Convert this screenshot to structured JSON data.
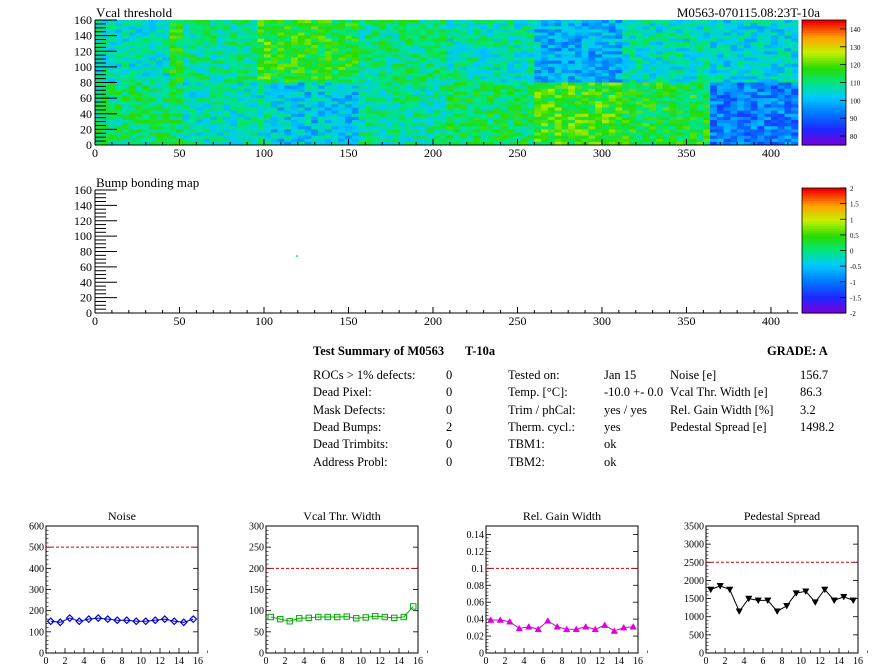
{
  "header": {
    "left_title": "Vcal threshold",
    "right_title": "M0563-070115.08:23T-10a"
  },
  "map1": {
    "title": "Vcal threshold",
    "x_ticks": [
      "0",
      "50",
      "100",
      "150",
      "200",
      "250",
      "300",
      "350",
      "400"
    ],
    "y_ticks": [
      "0",
      "20",
      "40",
      "60",
      "80",
      "100",
      "120",
      "140",
      "160"
    ],
    "colorbar_ticks": [
      "80",
      "90",
      "100",
      "110",
      "120",
      "130",
      "140"
    ],
    "chart_data": {
      "type": "heatmap",
      "xlim": [
        0,
        416
      ],
      "ylim": [
        0,
        160
      ],
      "zlim": [
        75,
        140
      ],
      "roc_grid": {
        "columns": 8,
        "rows": 2,
        "roc_width": 52,
        "roc_height": 80
      },
      "roc_mean_top": [
        104,
        107,
        113,
        108,
        105,
        97,
        104,
        102
      ],
      "roc_mean_bottom": [
        109,
        104,
        100,
        106,
        110,
        115,
        112,
        92
      ]
    }
  },
  "map2": {
    "title": "Bump bonding map",
    "x_ticks": [
      "0",
      "50",
      "100",
      "150",
      "200",
      "250",
      "300",
      "350",
      "400"
    ],
    "y_ticks": [
      "0",
      "20",
      "40",
      "60",
      "80",
      "100",
      "120",
      "140",
      "160"
    ],
    "colorbar_ticks": [
      "-2",
      "-1.5",
      "-1",
      "-0.5",
      "0",
      "0.5",
      "1",
      "1.5",
      "2"
    ],
    "chart_data": {
      "type": "heatmap",
      "xlim": [
        0,
        416
      ],
      "ylim": [
        0,
        160
      ],
      "zlim": [
        -2,
        2
      ],
      "points": [
        {
          "x": 119,
          "y": 75,
          "z": 0
        }
      ]
    }
  },
  "summary": {
    "title": "Test Summary of M0563",
    "temp_label": "T-10a",
    "grade": "GRADE:  A",
    "left": [
      {
        "label": "ROCs > 1% defects:",
        "value": "0"
      },
      {
        "label": "Dead Pixel:",
        "value": "0"
      },
      {
        "label": "Mask Defects:",
        "value": "0"
      },
      {
        "label": "Dead Bumps:",
        "value": "2"
      },
      {
        "label": "Dead Trimbits:",
        "value": "0"
      },
      {
        "label": "Address Probl:",
        "value": "0"
      }
    ],
    "middle": [
      {
        "label": "Tested on:",
        "value": "Jan 15"
      },
      {
        "label": "Temp. [°C]:",
        "value": "-10.0 +- 0.0"
      },
      {
        "label": "Trim / phCal:",
        "value": "yes / yes"
      },
      {
        "label": "Therm. cycl.:",
        "value": "yes"
      },
      {
        "label": "TBM1:",
        "value": "ok"
      },
      {
        "label": "TBM2:",
        "value": "ok"
      }
    ],
    "right": [
      {
        "label": "Noise [e]",
        "value": "156.7"
      },
      {
        "label": "Vcal Thr. Width [e]",
        "value": "86.3"
      },
      {
        "label": "Rel. Gain Width [%]",
        "value": "3.2"
      },
      {
        "label": "Pedestal Spread [e]",
        "value": "1498.2"
      }
    ]
  },
  "plots": [
    {
      "title": "Noise",
      "color": "#0000cc",
      "marker": "diamond",
      "x_ticks": [
        "0",
        "2",
        "4",
        "6",
        "8",
        "10",
        "12",
        "14",
        "16"
      ],
      "y_ticks": [
        "0",
        "100",
        "200",
        "300",
        "400",
        "500",
        "600"
      ],
      "chart_data": {
        "type": "line",
        "xlim": [
          0,
          16
        ],
        "ylim": [
          0,
          600
        ],
        "threshold": 500,
        "x": [
          0,
          1,
          2,
          3,
          4,
          5,
          6,
          7,
          8,
          9,
          10,
          11,
          12,
          13,
          14,
          15
        ],
        "values": [
          150,
          145,
          165,
          150,
          160,
          165,
          160,
          155,
          155,
          150,
          150,
          155,
          160,
          150,
          145,
          160
        ]
      }
    },
    {
      "title": "Vcal Thr. Width",
      "color": "#00aa00",
      "marker": "square",
      "x_ticks": [
        "0",
        "2",
        "4",
        "6",
        "8",
        "10",
        "12",
        "14",
        "16"
      ],
      "y_ticks": [
        "0",
        "50",
        "100",
        "150",
        "200",
        "250",
        "300"
      ],
      "chart_data": {
        "type": "line",
        "xlim": [
          0,
          16
        ],
        "ylim": [
          0,
          300
        ],
        "threshold": 200,
        "x": [
          0,
          1,
          2,
          3,
          4,
          5,
          6,
          7,
          8,
          9,
          10,
          11,
          12,
          13,
          14,
          15
        ],
        "values": [
          85,
          80,
          75,
          82,
          83,
          85,
          85,
          85,
          86,
          82,
          84,
          87,
          85,
          83,
          85,
          110
        ]
      }
    },
    {
      "title": "Rel. Gain Width",
      "color": "#dd00dd",
      "marker": "triangle",
      "x_ticks": [
        "0",
        "2",
        "4",
        "6",
        "8",
        "10",
        "12",
        "14",
        "16"
      ],
      "y_ticks": [
        "0",
        "0.02",
        "0.04",
        "0.06",
        "0.08",
        "0.1",
        "0.12",
        "0.14"
      ],
      "chart_data": {
        "type": "line",
        "xlim": [
          0,
          16
        ],
        "ylim": [
          0,
          0.15
        ],
        "threshold": 0.1,
        "x": [
          0,
          1,
          2,
          3,
          4,
          5,
          6,
          7,
          8,
          9,
          10,
          11,
          12,
          13,
          14,
          15
        ],
        "values": [
          0.039,
          0.039,
          0.037,
          0.029,
          0.031,
          0.028,
          0.038,
          0.031,
          0.028,
          0.028,
          0.031,
          0.028,
          0.033,
          0.026,
          0.03,
          0.031
        ]
      }
    },
    {
      "title": "Pedestal Spread",
      "color": "#000000",
      "marker": "triangle-down",
      "x_ticks": [
        "0",
        "2",
        "4",
        "6",
        "8",
        "10",
        "12",
        "14",
        "16"
      ],
      "y_ticks": [
        "0",
        "500",
        "1000",
        "1500",
        "2000",
        "2500",
        "3000",
        "3500"
      ],
      "chart_data": {
        "type": "line",
        "xlim": [
          0,
          16
        ],
        "ylim": [
          0,
          3500
        ],
        "threshold": 2500,
        "x": [
          0,
          1,
          2,
          3,
          4,
          5,
          6,
          7,
          8,
          9,
          10,
          11,
          12,
          13,
          14,
          15
        ],
        "values": [
          1750,
          1850,
          1750,
          1150,
          1500,
          1450,
          1450,
          1150,
          1300,
          1650,
          1700,
          1400,
          1750,
          1450,
          1550,
          1450
        ]
      }
    }
  ]
}
